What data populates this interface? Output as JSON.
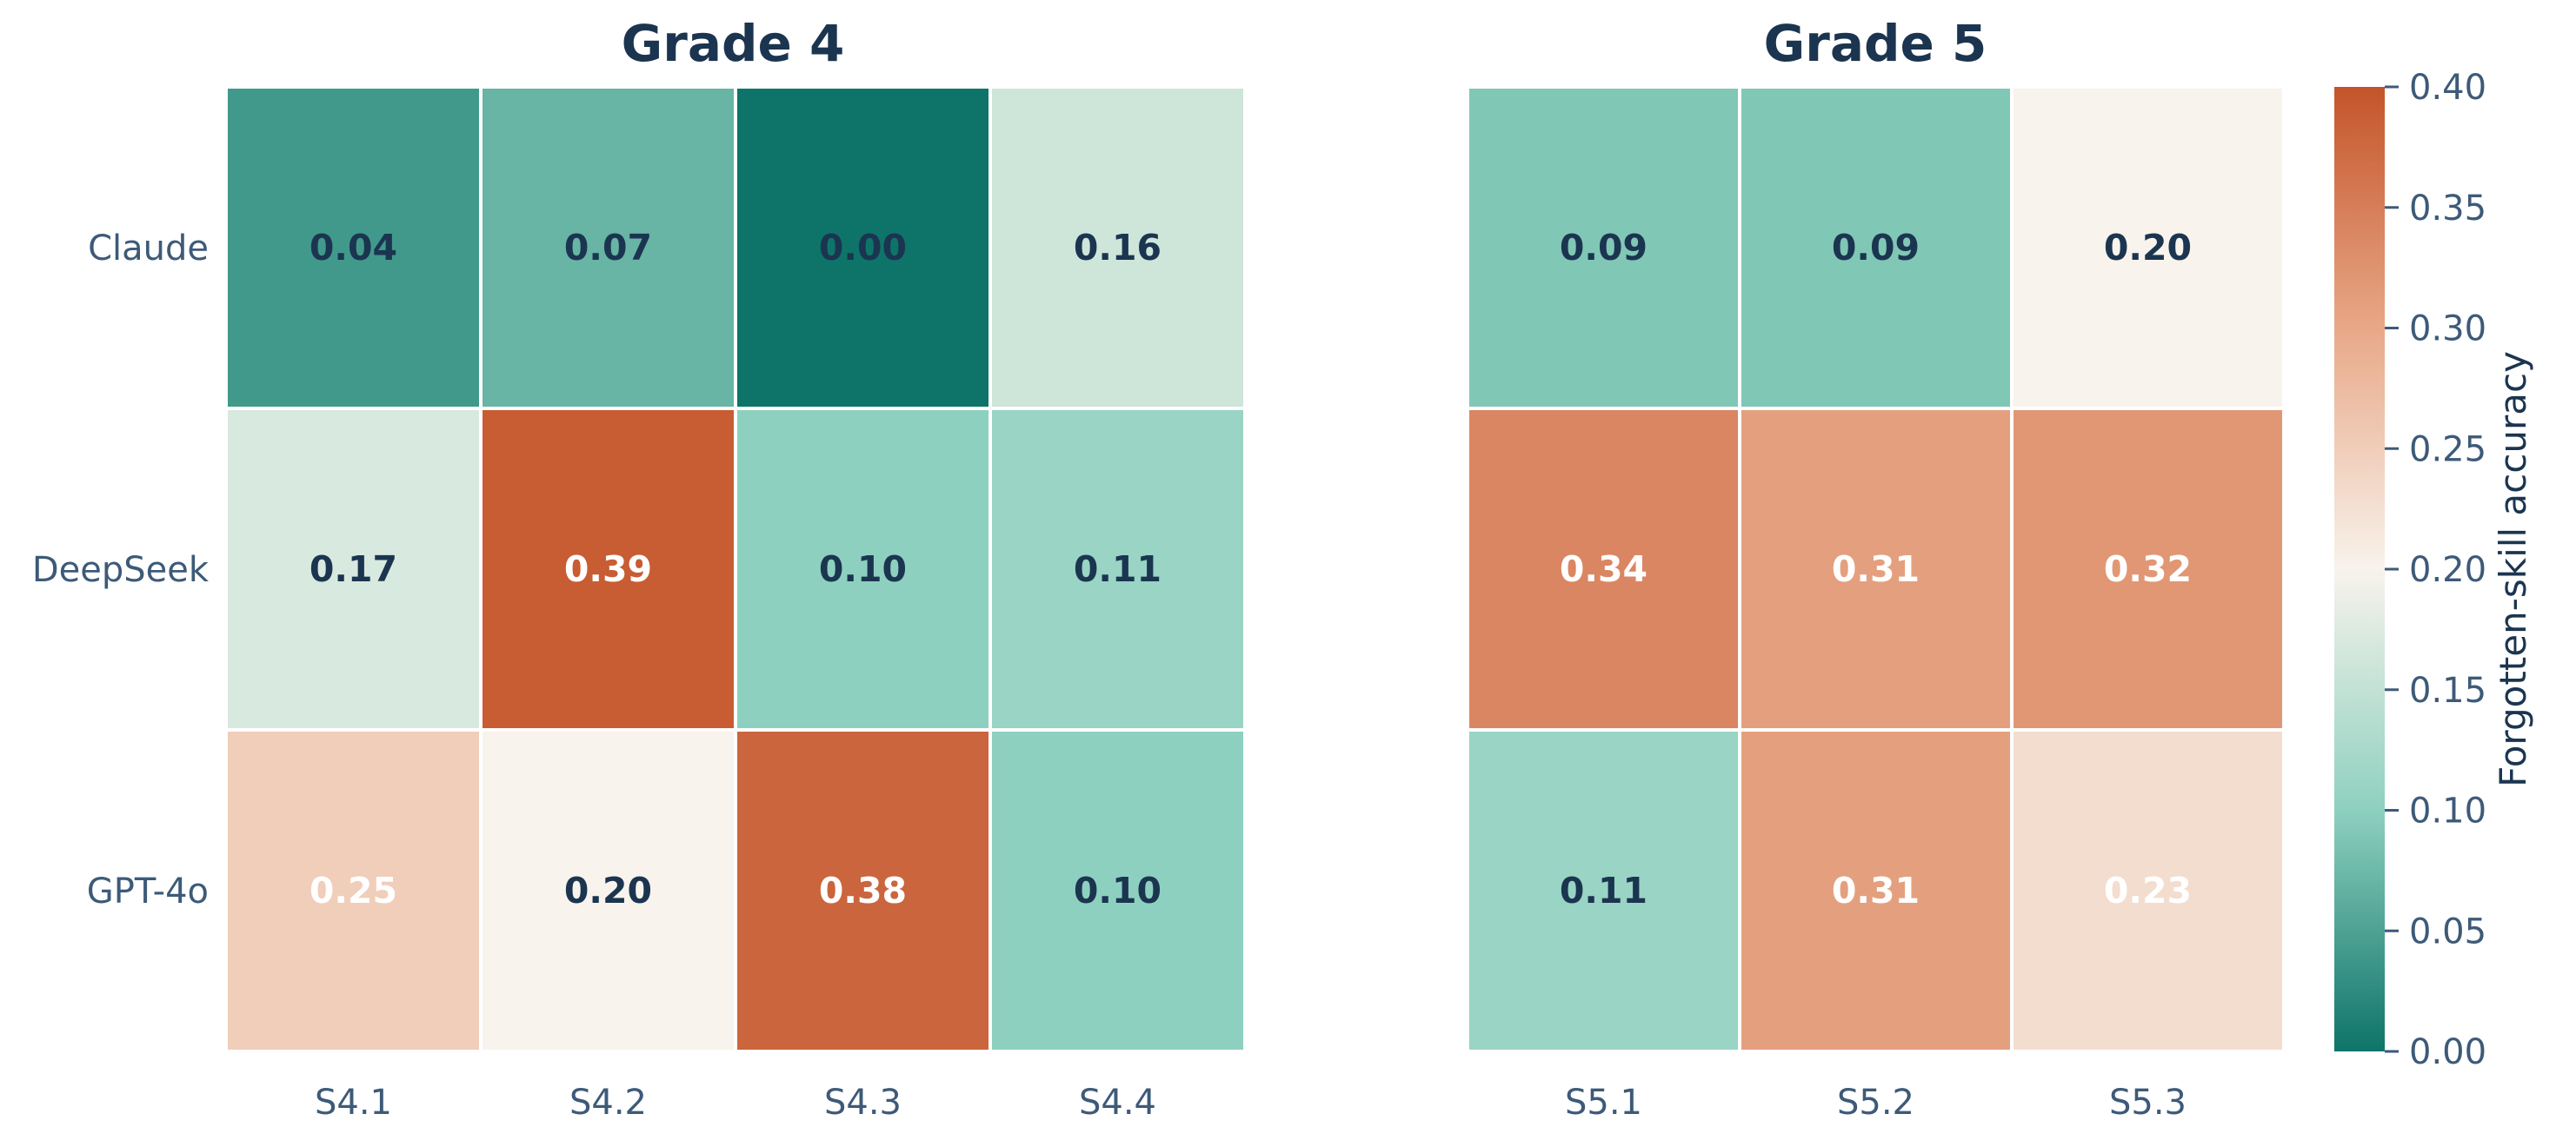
{
  "chart_data": [
    {
      "type": "heatmap",
      "title": "Grade 4",
      "rows": [
        "Claude",
        "DeepSeek",
        "GPT-4o"
      ],
      "columns": [
        "S4.1",
        "S4.2",
        "S4.3",
        "S4.4"
      ],
      "values": [
        [
          0.04,
          0.07,
          0.0,
          0.16
        ],
        [
          0.17,
          0.39,
          0.1,
          0.11
        ],
        [
          0.25,
          0.2,
          0.38,
          0.1
        ]
      ],
      "labels": [
        [
          "0.04",
          "0.07",
          "0.00",
          "0.16"
        ],
        [
          "0.17",
          "0.39",
          "0.10",
          "0.11"
        ],
        [
          "0.25",
          "0.20",
          "0.38",
          "0.10"
        ]
      ]
    },
    {
      "type": "heatmap",
      "title": "Grade 5",
      "rows": [
        "Claude",
        "DeepSeek",
        "GPT-4o"
      ],
      "columns": [
        "S5.1",
        "S5.2",
        "S5.3"
      ],
      "values": [
        [
          0.09,
          0.09,
          0.2
        ],
        [
          0.34,
          0.31,
          0.32
        ],
        [
          0.11,
          0.31,
          0.23
        ]
      ],
      "labels": [
        [
          "0.09",
          "0.09",
          "0.20"
        ],
        [
          "0.34",
          "0.31",
          "0.32"
        ],
        [
          "0.11",
          "0.31",
          "0.23"
        ]
      ]
    }
  ],
  "colorbar": {
    "title": "Forgotten-skill accuracy",
    "range": [
      0.0,
      0.4
    ],
    "ticks": [
      0.0,
      0.05,
      0.1,
      0.15,
      0.2,
      0.25,
      0.3,
      0.35,
      0.4
    ],
    "tick_labels": [
      "0.00",
      "0.05",
      "0.10",
      "0.15",
      "0.20",
      "0.25",
      "0.30",
      "0.35",
      "0.40"
    ],
    "colormap": [
      {
        "value": 0.0,
        "color": "#0e7469"
      },
      {
        "value": 0.1,
        "color": "#8ed0bf"
      },
      {
        "value": 0.2,
        "color": "#f8f3ec"
      },
      {
        "value": 0.3,
        "color": "#e8a887"
      },
      {
        "value": 0.4,
        "color": "#c4542a"
      }
    ]
  },
  "colors": {
    "title": "#1b3550",
    "axis_text": "#3d5a78",
    "label_dark": "#1b3550",
    "label_light": "#ffffff",
    "cell_border": "#ffffff"
  }
}
